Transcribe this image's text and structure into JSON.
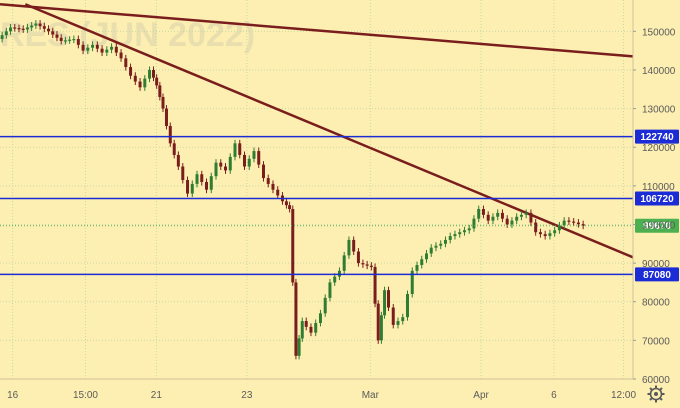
{
  "chart_data": {
    "type": "candlestick",
    "watermark": "RES (JUN 2022)",
    "ylim": [
      60000,
      155000
    ],
    "y_ticks": [
      {
        "value": 60000,
        "label": "60000"
      },
      {
        "value": 70000,
        "label": "70000"
      },
      {
        "value": 80000,
        "label": "80000"
      },
      {
        "value": 90000,
        "label": "90000"
      },
      {
        "value": 100000,
        "label": "100000"
      },
      {
        "value": 110000,
        "label": "110000"
      },
      {
        "value": 120000,
        "label": "120000"
      },
      {
        "value": 130000,
        "label": "130000"
      },
      {
        "value": 140000,
        "label": "140000"
      },
      {
        "value": 150000,
        "label": "150000"
      }
    ],
    "x_ticks": [
      {
        "label": "16",
        "pos": 0.02
      },
      {
        "label": "15:00",
        "pos": 0.135
      },
      {
        "label": "21",
        "pos": 0.247
      },
      {
        "label": "23",
        "pos": 0.39
      },
      {
        "label": "Mar",
        "pos": 0.585
      },
      {
        "label": "Apr",
        "pos": 0.76
      },
      {
        "label": "6",
        "pos": 0.875
      },
      {
        "label": "12:00",
        "pos": 0.985
      }
    ],
    "horizontal_levels": [
      {
        "value": 122740,
        "label": "122740",
        "color": "#1b2bd6"
      },
      {
        "value": 106720,
        "label": "106720",
        "color": "#1b2bd6"
      },
      {
        "value": 87080,
        "label": "87080",
        "color": "#1b2bd6"
      }
    ],
    "last_price": {
      "value": 99670,
      "label": "99670",
      "color": "#4caf50"
    },
    "trend_lines": [
      {
        "from": [
          0.0,
          157000
        ],
        "to": [
          1.0,
          143500
        ],
        "color": "#7a1d1d"
      },
      {
        "from": [
          0.04,
          157000
        ],
        "to": [
          1.0,
          91500
        ],
        "color": "#7a1d1d"
      }
    ],
    "series": [
      {
        "name": "price",
        "up_color": "#2e7d32",
        "down_color": "#7a1d1d",
        "values": [
          [
            0.0,
            148000
          ],
          [
            0.02,
            151000
          ],
          [
            0.04,
            150500
          ],
          [
            0.06,
            152000
          ],
          [
            0.08,
            150000
          ],
          [
            0.1,
            147500
          ],
          [
            0.12,
            148000
          ],
          [
            0.135,
            145000
          ],
          [
            0.15,
            146500
          ],
          [
            0.165,
            144500
          ],
          [
            0.18,
            146000
          ],
          [
            0.195,
            143000
          ],
          [
            0.21,
            138500
          ],
          [
            0.225,
            135500
          ],
          [
            0.24,
            140000
          ],
          [
            0.25,
            136000
          ],
          [
            0.26,
            130000
          ],
          [
            0.272,
            121000
          ],
          [
            0.285,
            115000
          ],
          [
            0.3,
            108000
          ],
          [
            0.315,
            113000
          ],
          [
            0.33,
            109000
          ],
          [
            0.345,
            116000
          ],
          [
            0.36,
            114000
          ],
          [
            0.375,
            121000
          ],
          [
            0.39,
            115000
          ],
          [
            0.405,
            119000
          ],
          [
            0.42,
            112000
          ],
          [
            0.435,
            109000
          ],
          [
            0.45,
            106000
          ],
          [
            0.46,
            104000
          ],
          [
            0.47,
            66000
          ],
          [
            0.48,
            75000
          ],
          [
            0.495,
            72000
          ],
          [
            0.51,
            77000
          ],
          [
            0.525,
            85000
          ],
          [
            0.54,
            88000
          ],
          [
            0.555,
            96000
          ],
          [
            0.57,
            90000
          ],
          [
            0.59,
            89000
          ],
          [
            0.6,
            70000
          ],
          [
            0.61,
            83000
          ],
          [
            0.625,
            74000
          ],
          [
            0.64,
            76000
          ],
          [
            0.655,
            88000
          ],
          [
            0.67,
            91000
          ],
          [
            0.685,
            94000
          ],
          [
            0.7,
            95000
          ],
          [
            0.715,
            97000
          ],
          [
            0.73,
            98000
          ],
          [
            0.745,
            99000
          ],
          [
            0.76,
            104000
          ],
          [
            0.775,
            101000
          ],
          [
            0.79,
            103000
          ],
          [
            0.805,
            100000
          ],
          [
            0.82,
            102000
          ],
          [
            0.835,
            103000
          ],
          [
            0.85,
            98000
          ],
          [
            0.865,
            97000
          ],
          [
            0.88,
            98500
          ],
          [
            0.895,
            101000
          ],
          [
            0.91,
            100500
          ],
          [
            0.925,
            99670
          ]
        ]
      }
    ]
  }
}
